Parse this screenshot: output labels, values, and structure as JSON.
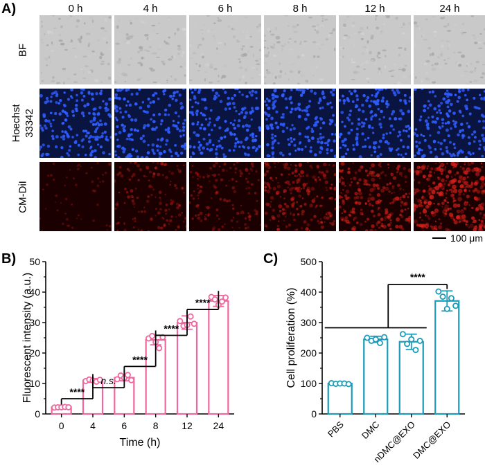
{
  "panel_a": {
    "letter": "A)",
    "time_labels": [
      "0 h",
      "4 h",
      "6 h",
      "8 h",
      "12 h",
      "24 h"
    ],
    "row_labels": [
      {
        "lines": [
          "BF"
        ]
      },
      {
        "lines": [
          "Hoechst",
          "33342"
        ]
      },
      {
        "lines": [
          "CM-DiI"
        ]
      }
    ],
    "scale_bar_label": "100 μm",
    "colors": {
      "bf": "#c9c9c9",
      "hoechst_bg": "#0a1440",
      "hoechst_cells": "#2e5cff",
      "dii_bg": "#1a0000",
      "dii_cells": "#e0201a"
    },
    "dii_intensity": [
      0.05,
      0.35,
      0.35,
      0.6,
      0.7,
      0.95
    ]
  },
  "panel_b": {
    "letter": "B)",
    "significance": [
      "****",
      "n.s.",
      "****",
      "****",
      "****"
    ]
  },
  "panel_c": {
    "letter": "C)",
    "significance": [
      "****"
    ]
  },
  "chart_data": [
    {
      "type": "bar",
      "categories": [
        "0",
        "4",
        "6",
        "8",
        "12",
        "24"
      ],
      "values": [
        2.2,
        11.0,
        11.9,
        24.3,
        30.0,
        37.1
      ],
      "errors": [
        0.2,
        0.6,
        1.0,
        1.6,
        2.2,
        1.8
      ],
      "points": [
        [
          2.1,
          2.2,
          2.2,
          2.3,
          2.2
        ],
        [
          10.8,
          11.3,
          11.0,
          10.6,
          11.2
        ],
        [
          11.4,
          12.6,
          11.8,
          12.8,
          11.1
        ],
        [
          24.8,
          25.6,
          23.6,
          21.6,
          25.2
        ],
        [
          30.5,
          28.9,
          29.2,
          32.0,
          29.6
        ],
        [
          38.4,
          37.6,
          35.8,
          36.9,
          38.2
        ]
      ],
      "xlabel": "Time (h)",
      "ylabel": "Fluorescent intensity (a.u.)",
      "ylim": [
        0,
        50
      ],
      "yticks": [
        0,
        10,
        20,
        30,
        40,
        50
      ],
      "color": "#f0679e"
    },
    {
      "type": "bar",
      "categories": [
        "PBS",
        "DMC",
        "nDMC@EXO",
        "DMC@EXO"
      ],
      "values": [
        100,
        245,
        237,
        371
      ],
      "errors": [
        3,
        10,
        25,
        33
      ],
      "points": [
        [
          101,
          99,
          100,
          100,
          98
        ],
        [
          250,
          240,
          245,
          233,
          252
        ],
        [
          262,
          230,
          245,
          210,
          240
        ],
        [
          402,
          385,
          345,
          380,
          355
        ]
      ],
      "xlabel": "",
      "ylabel": "Cell proliferation (%)",
      "ylim": [
        0,
        500
      ],
      "yticks": [
        0,
        100,
        200,
        300,
        400,
        500
      ],
      "color": "#1a9cb8"
    }
  ]
}
